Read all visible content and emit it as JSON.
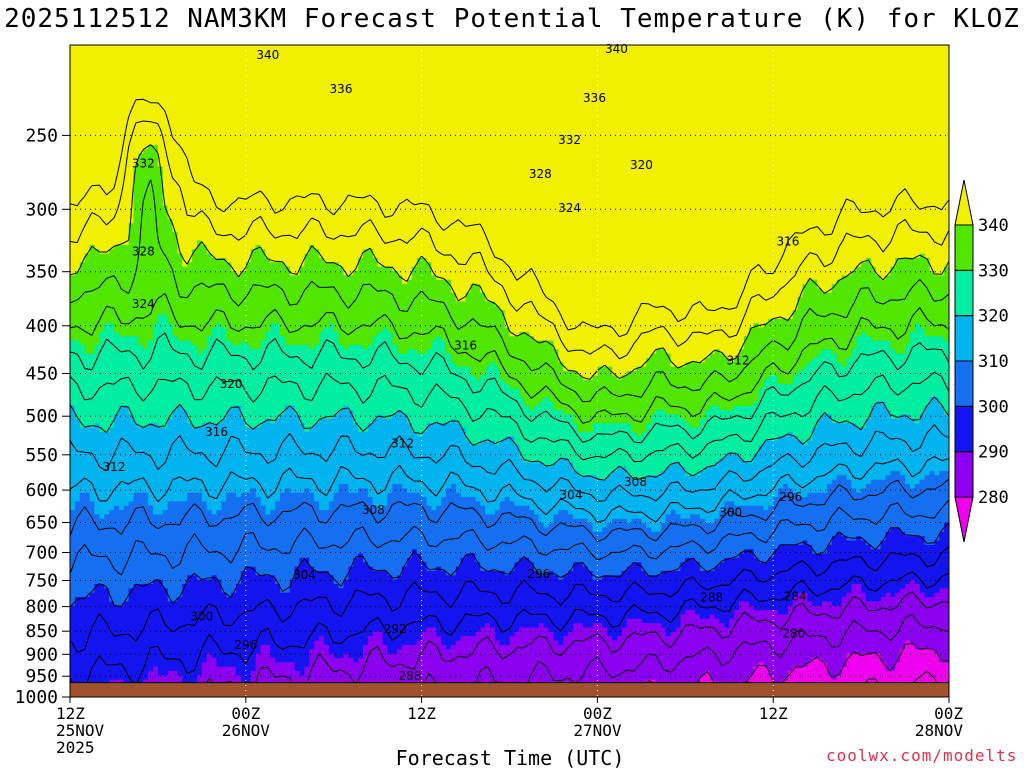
{
  "title": "2025112512 NAM3KM Forecast Potential Temperature (K) for KLOZ",
  "watermark": "coolwx.com/modelts",
  "chart_data": {
    "type": "heatmap",
    "title": "2025112512 NAM3KM Forecast Potential Temperature (K) for KLOZ",
    "xlabel": "Forecast Time (UTC)",
    "ylabel": "",
    "x_unit": "forecast hour",
    "xlim": [
      0,
      60
    ],
    "y_unit": "hPa",
    "ylim": [
      1000,
      200
    ],
    "yscale": "log-pressure",
    "grid": true,
    "x_ticks": [
      {
        "hour": 0,
        "lines": [
          "12Z",
          "25NOV",
          "2025"
        ]
      },
      {
        "hour": 12,
        "lines": [
          "00Z",
          "26NOV"
        ]
      },
      {
        "hour": 24,
        "lines": [
          "12Z"
        ]
      },
      {
        "hour": 36,
        "lines": [
          "00Z",
          "27NOV"
        ]
      },
      {
        "hour": 48,
        "lines": [
          "12Z"
        ]
      },
      {
        "hour": 60,
        "lines": [
          "00Z",
          "28NOV"
        ]
      }
    ],
    "y_ticks": [
      250,
      300,
      350,
      400,
      450,
      500,
      550,
      600,
      650,
      700,
      750,
      800,
      850,
      900,
      950,
      1000
    ],
    "surface_pressure": 965,
    "colorbar": {
      "levels": [
        "280",
        "290",
        "300",
        "310",
        "320",
        "330",
        "340"
      ],
      "bands": [
        {
          "min": 270,
          "max": 280,
          "color": "#ee00ee"
        },
        {
          "min": 280,
          "max": 290,
          "color": "#8c00f0"
        },
        {
          "min": 290,
          "max": 300,
          "color": "#1414f0"
        },
        {
          "min": 300,
          "max": 310,
          "color": "#1470f0"
        },
        {
          "min": 310,
          "max": 320,
          "color": "#00b4f0"
        },
        {
          "min": 320,
          "max": 330,
          "color": "#00eea0"
        },
        {
          "min": 330,
          "max": 340,
          "color": "#50e600"
        },
        {
          "min": 340,
          "max": 350,
          "color": "#f0f000"
        }
      ]
    },
    "ground_color": "#a0522d",
    "contour_interval": 4,
    "contour_labels": [
      {
        "value": "340",
        "hour": 13.5,
        "hPa": 205
      },
      {
        "value": "340",
        "hour": 37.3,
        "hPa": 202
      },
      {
        "value": "336",
        "hour": 18.5,
        "hPa": 223
      },
      {
        "value": "336",
        "hour": 35.8,
        "hPa": 228
      },
      {
        "value": "332",
        "hour": 5.0,
        "hPa": 268
      },
      {
        "value": "332",
        "hour": 34.1,
        "hPa": 253
      },
      {
        "value": "328",
        "hour": 32.1,
        "hPa": 275
      },
      {
        "value": "320",
        "hour": 39.0,
        "hPa": 269
      },
      {
        "value": "324",
        "hour": 34.1,
        "hPa": 299
      },
      {
        "value": "328",
        "hour": 5.0,
        "hPa": 333
      },
      {
        "value": "316",
        "hour": 49.0,
        "hPa": 325
      },
      {
        "value": "324",
        "hour": 5.0,
        "hPa": 379
      },
      {
        "value": "316",
        "hour": 27.0,
        "hPa": 420
      },
      {
        "value": "312",
        "hour": 45.6,
        "hPa": 436
      },
      {
        "value": "320",
        "hour": 11.0,
        "hPa": 462
      },
      {
        "value": "316",
        "hour": 10.0,
        "hPa": 520
      },
      {
        "value": "312",
        "hour": 22.7,
        "hPa": 535
      },
      {
        "value": "312",
        "hour": 3.0,
        "hPa": 567
      },
      {
        "value": "308",
        "hour": 38.6,
        "hPa": 588
      },
      {
        "value": "304",
        "hour": 34.2,
        "hPa": 607
      },
      {
        "value": "308",
        "hour": 20.7,
        "hPa": 630
      },
      {
        "value": "300",
        "hour": 45.1,
        "hPa": 634
      },
      {
        "value": "296",
        "hour": 49.2,
        "hPa": 610
      },
      {
        "value": "304",
        "hour": 16.0,
        "hPa": 740
      },
      {
        "value": "296",
        "hour": 32.0,
        "hPa": 738
      },
      {
        "value": "288",
        "hour": 43.8,
        "hPa": 782
      },
      {
        "value": "284",
        "hour": 49.5,
        "hPa": 780
      },
      {
        "value": "300",
        "hour": 9.0,
        "hPa": 820
      },
      {
        "value": "292",
        "hour": 22.2,
        "hPa": 845
      },
      {
        "value": "280",
        "hour": 49.4,
        "hPa": 855
      },
      {
        "value": "296",
        "hour": 12.0,
        "hPa": 880
      },
      {
        "value": "288",
        "hour": 23.2,
        "hPa": 950
      }
    ]
  }
}
